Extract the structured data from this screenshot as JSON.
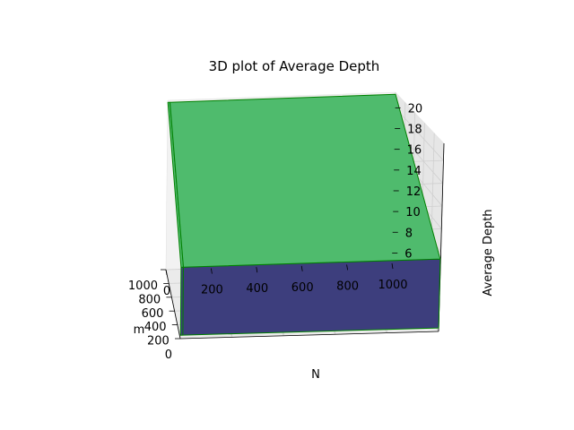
{
  "chart_data": {
    "type": "surface3d",
    "title": "3D plot of Average Depth",
    "xlabel": "N",
    "ylabel": "m",
    "zlabel": "Average Depth",
    "x_ticks": [
      "0",
      "200",
      "400",
      "600",
      "800",
      "1000"
    ],
    "y_ticks": [
      "0",
      "200",
      "400",
      "600",
      "800",
      "1000"
    ],
    "z_ticks": [
      "6",
      "8",
      "10",
      "12",
      "14",
      "16",
      "18",
      "20"
    ],
    "xlim": [
      0,
      1000
    ],
    "ylim": [
      0,
      1000
    ],
    "zlim": [
      5,
      21.5
    ],
    "x": [
      1,
      10,
      1000
    ],
    "y": [
      1,
      10,
      1000
    ],
    "z": [
      [
        5.3,
        5.3,
        5.3
      ],
      [
        11.3,
        11.3,
        11.3
      ],
      [
        21.3,
        21.3,
        21.3
      ]
    ],
    "colormap": "viridis",
    "edge_color": "#008000",
    "grid": true
  }
}
